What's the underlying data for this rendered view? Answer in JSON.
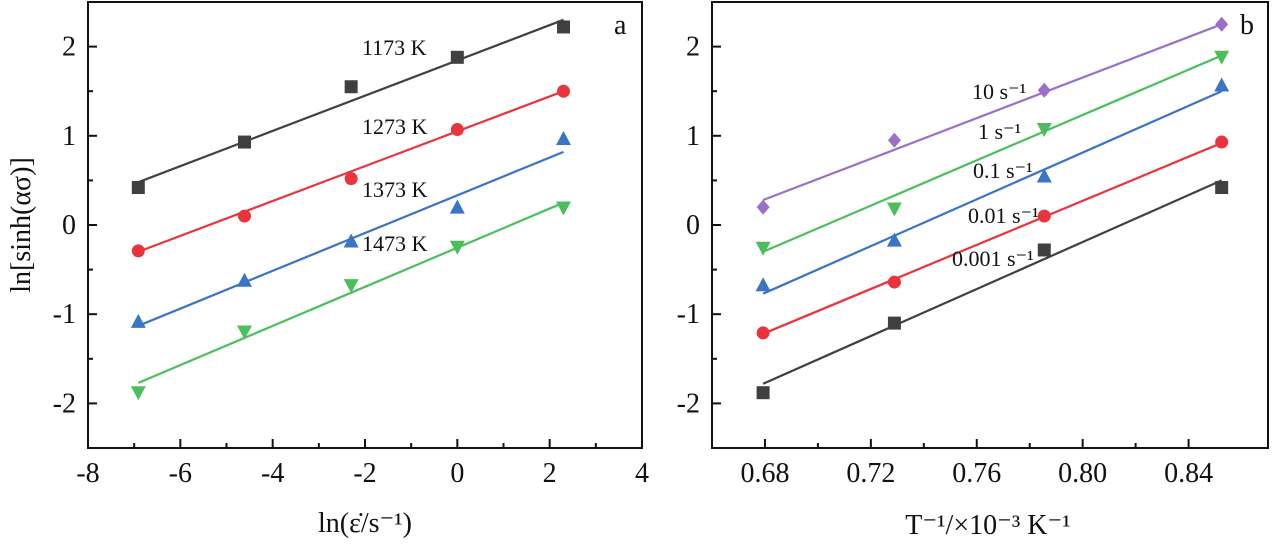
{
  "chart_data": [
    {
      "type": "scatter",
      "panel_label": "a",
      "xlabel": "ln(ε̇/s⁻¹)",
      "ylabel": "ln[sinh(ασ)]",
      "xlim": [
        -8,
        4
      ],
      "ylim": [
        -2.5,
        2.5
      ],
      "xticks": [
        -8,
        -6,
        -4,
        -2,
        0,
        2,
        4
      ],
      "yticks": [
        -2,
        -1,
        0,
        1,
        2
      ],
      "x_tick_labels": [
        "-8",
        "-6",
        "-4",
        "-2",
        "0",
        "2",
        "4"
      ],
      "y_tick_labels": [
        "-2",
        "-1",
        "0",
        "1",
        "2"
      ],
      "grid": false,
      "series": [
        {
          "name": "1173 K",
          "color": "#404040",
          "marker": "square",
          "x": [
            -6.91,
            -4.61,
            -2.3,
            0.0,
            2.3
          ],
          "y": [
            0.42,
            0.93,
            1.55,
            1.88,
            2.22
          ],
          "fit": [
            [
              -6.91,
              0.48
            ],
            [
              2.3,
              2.3
            ]
          ]
        },
        {
          "name": "1273 K",
          "color": "#e8343a",
          "marker": "circle",
          "x": [
            -6.91,
            -4.61,
            -2.3,
            0.0,
            2.3
          ],
          "y": [
            -0.29,
            0.1,
            0.52,
            1.07,
            1.5
          ],
          "fit": [
            [
              -6.91,
              -0.3
            ],
            [
              2.3,
              1.5
            ]
          ]
        },
        {
          "name": "1373 K",
          "color": "#3a74c4",
          "marker": "triangle-up",
          "x": [
            -6.91,
            -4.61,
            -2.3,
            0.0,
            2.3
          ],
          "y": [
            -1.08,
            -0.62,
            -0.18,
            0.2,
            0.97
          ],
          "fit": [
            [
              -6.91,
              -1.13
            ],
            [
              2.3,
              0.82
            ]
          ]
        },
        {
          "name": "1473 K",
          "color": "#4cbf5c",
          "marker": "triangle-down",
          "x": [
            -6.91,
            -4.61,
            -2.3,
            0.0,
            2.3
          ],
          "y": [
            -1.88,
            -1.2,
            -0.68,
            -0.25,
            0.19
          ],
          "fit": [
            [
              -6.91,
              -1.77
            ],
            [
              2.3,
              0.25
            ]
          ]
        }
      ]
    },
    {
      "type": "scatter",
      "panel_label": "b",
      "xlabel": "T⁻¹/×10⁻³ K⁻¹",
      "ylabel": "",
      "xlim": [
        0.66,
        0.87
      ],
      "ylim": [
        -2.5,
        2.5
      ],
      "xticks": [
        0.68,
        0.72,
        0.76,
        0.8,
        0.84
      ],
      "yticks": [
        -2,
        -1,
        0,
        1,
        2
      ],
      "x_tick_labels": [
        "0.68",
        "0.72",
        "0.76",
        "0.80",
        "0.84"
      ],
      "y_tick_labels": [
        "-2",
        "-1",
        "0",
        "1",
        "2"
      ],
      "grid": false,
      "series": [
        {
          "name": "10 s⁻¹",
          "color": "#9b6fc9",
          "marker": "diamond",
          "x": [
            0.6793,
            0.7289,
            0.7855,
            0.8525
          ],
          "y": [
            0.2,
            0.95,
            1.51,
            2.25
          ],
          "fit": [
            [
              0.6793,
              0.28
            ],
            [
              0.8525,
              2.25
            ]
          ]
        },
        {
          "name": "1 s⁻¹",
          "color": "#4cbf5c",
          "marker": "triangle-down",
          "x": [
            0.6793,
            0.7289,
            0.7855,
            0.8525
          ],
          "y": [
            -0.26,
            0.18,
            1.07,
            1.88
          ],
          "fit": [
            [
              0.6793,
              -0.3
            ],
            [
              0.8525,
              1.9
            ]
          ]
        },
        {
          "name": "0.1 s⁻¹",
          "color": "#3a74c4",
          "marker": "triangle-up",
          "x": [
            0.6793,
            0.7289,
            0.7855,
            0.8525
          ],
          "y": [
            -0.67,
            -0.17,
            0.55,
            1.57
          ],
          "fit": [
            [
              0.6793,
              -0.77
            ],
            [
              0.8525,
              1.5
            ]
          ]
        },
        {
          "name": "0.01 s⁻¹",
          "color": "#e8343a",
          "marker": "circle",
          "x": [
            0.6793,
            0.7289,
            0.7855,
            0.8525
          ],
          "y": [
            -1.21,
            -0.64,
            0.1,
            0.93
          ],
          "fit": [
            [
              0.6793,
              -1.22
            ],
            [
              0.8525,
              0.92
            ]
          ]
        },
        {
          "name": "0.001 s⁻¹",
          "color": "#404040",
          "marker": "square",
          "x": [
            0.6793,
            0.7289,
            0.7855,
            0.8525
          ],
          "y": [
            -1.88,
            -1.1,
            -0.28,
            0.42
          ],
          "fit": [
            [
              0.6793,
              -1.78
            ],
            [
              0.8525,
              0.5
            ]
          ]
        }
      ]
    }
  ]
}
